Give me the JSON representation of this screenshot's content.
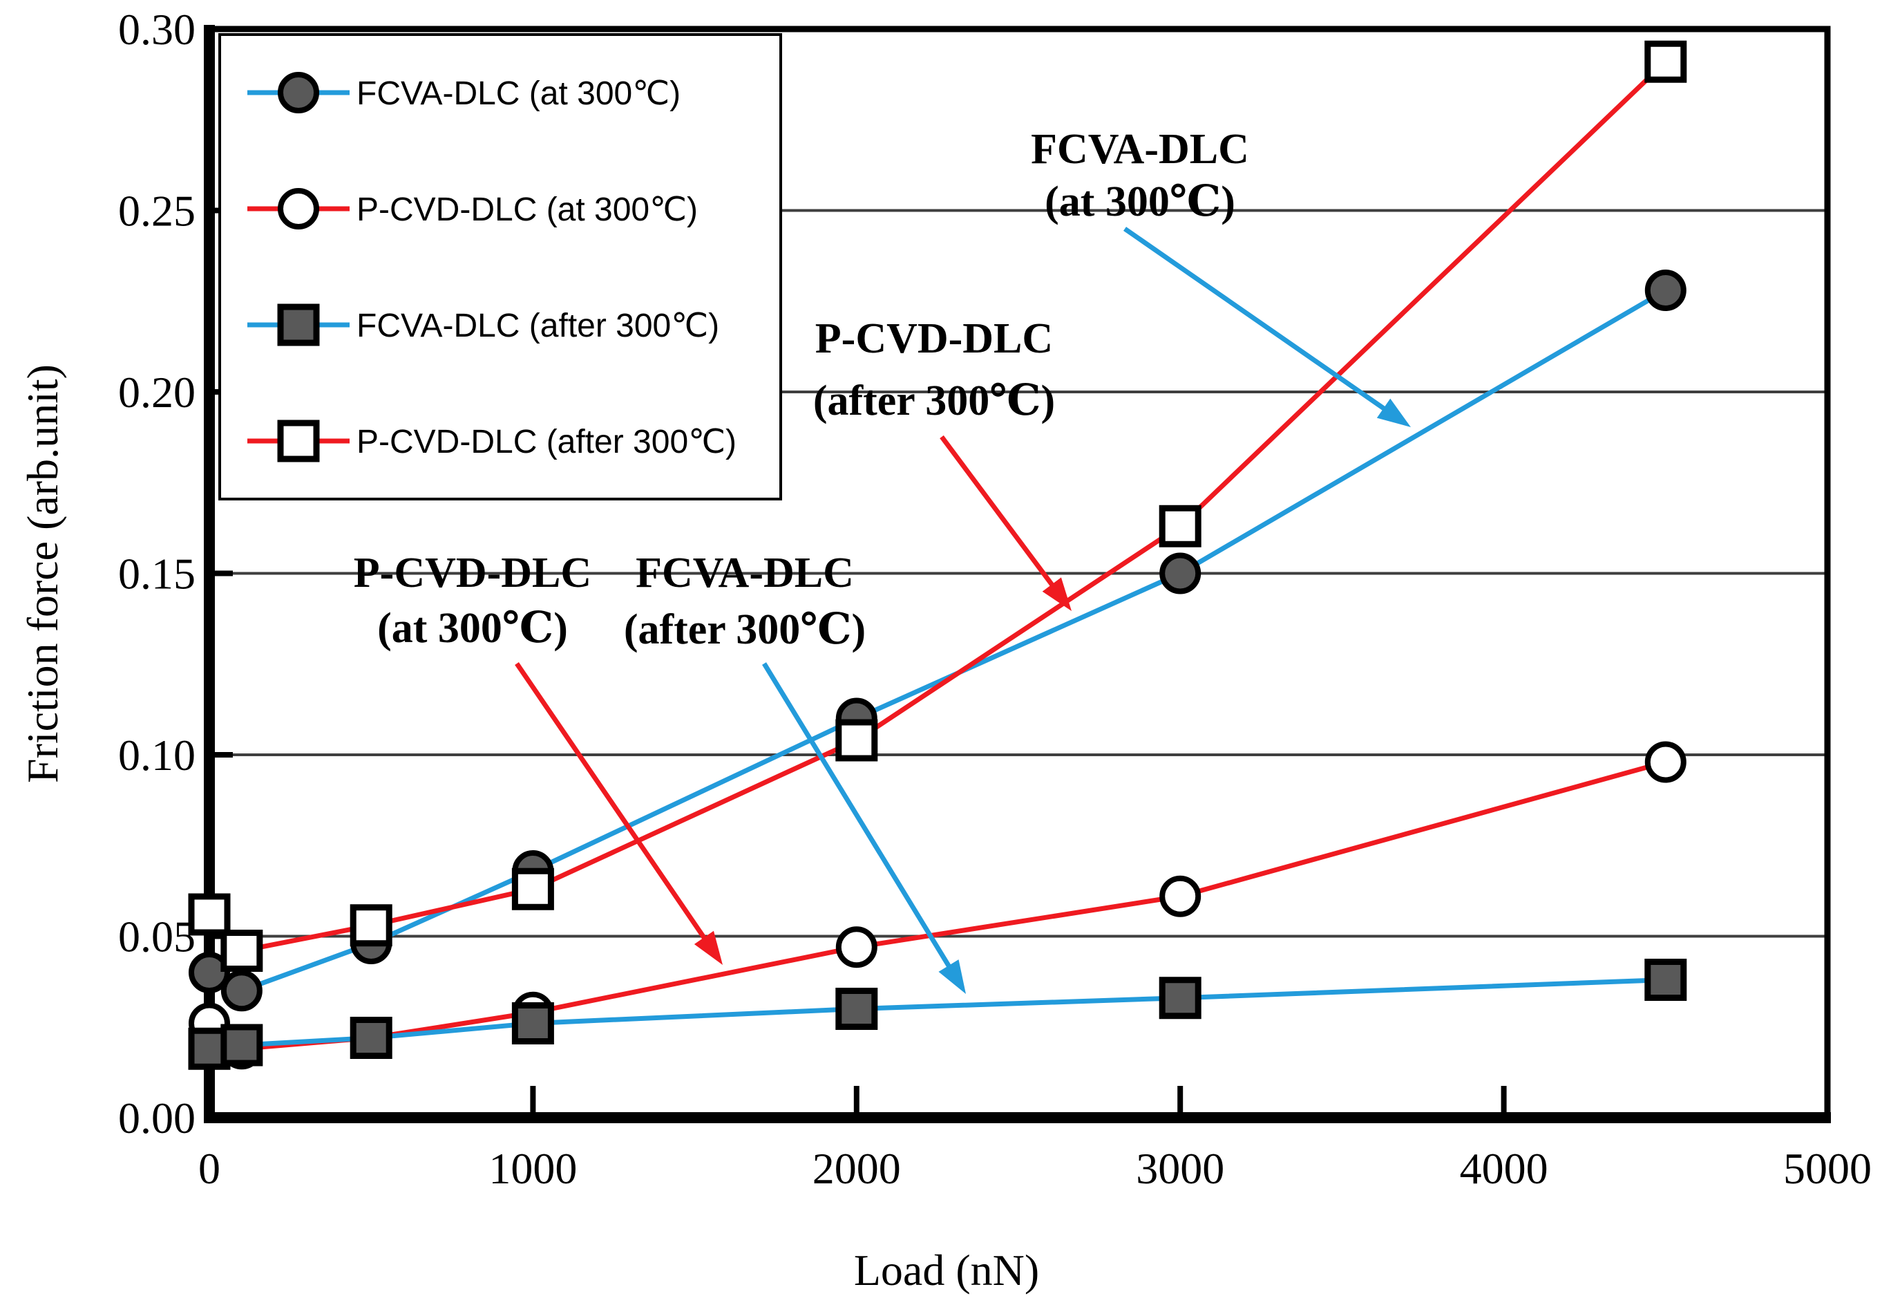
{
  "chart_data": {
    "type": "scatter",
    "title": "",
    "xlabel": "Load (nN)",
    "ylabel": "Friction force (arb.unit)",
    "xlim": [
      0,
      5000
    ],
    "ylim": [
      0.0,
      0.3
    ],
    "x_ticks": [
      0,
      1000,
      2000,
      3000,
      4000,
      5000
    ],
    "x_tick_labels": [
      "0",
      "1000",
      "2000",
      "3000",
      "4000",
      "5000"
    ],
    "y_ticks": [
      0.0,
      0.05,
      0.1,
      0.15,
      0.2,
      0.25,
      0.3
    ],
    "y_tick_labels": [
      "0.00",
      "0.05",
      "0.10",
      "0.15",
      "0.20",
      "0.25",
      "0.30"
    ],
    "grid": "horizontal",
    "legend_position": "top-left-inside",
    "colors": {
      "blue_line": "#239bdb",
      "red_line": "#ef1a20",
      "marker_fill_gray": "#595959",
      "marker_fill_open": "#ffffff",
      "marker_border": "#000000",
      "gridline": "#3f3f3f",
      "frame": "#000000"
    },
    "series": [
      {
        "name": "FCVA-DLC (at 300℃)",
        "line_color": "#239bdb",
        "marker": "filled-circle",
        "points": [
          [
            0,
            0.04
          ],
          [
            100,
            0.035
          ],
          [
            500,
            0.048
          ],
          [
            1000,
            0.068
          ],
          [
            2000,
            0.11
          ],
          [
            3000,
            0.15
          ],
          [
            4500,
            0.228
          ]
        ]
      },
      {
        "name": "P-CVD-DLC (at 300℃)",
        "line_color": "#ef1a20",
        "marker": "open-circle",
        "points": [
          [
            0,
            0.026
          ],
          [
            100,
            0.019
          ],
          [
            500,
            0.022
          ],
          [
            1000,
            0.029
          ],
          [
            2000,
            0.047
          ],
          [
            3000,
            0.061
          ],
          [
            4500,
            0.098
          ]
        ]
      },
      {
        "name": "FCVA-DLC (after 300℃)",
        "line_color": "#239bdb",
        "marker": "filled-square",
        "points": [
          [
            0,
            0.019
          ],
          [
            100,
            0.02
          ],
          [
            500,
            0.022
          ],
          [
            1000,
            0.026
          ],
          [
            2000,
            0.03
          ],
          [
            3000,
            0.033
          ],
          [
            4500,
            0.038
          ]
        ]
      },
      {
        "name": "P-CVD-DLC (after 300℃)",
        "line_color": "#ef1a20",
        "marker": "open-square",
        "points": [
          [
            0,
            0.056
          ],
          [
            100,
            0.046
          ],
          [
            500,
            0.053
          ],
          [
            1000,
            0.063
          ],
          [
            2000,
            0.104
          ],
          [
            3000,
            0.163
          ],
          [
            4500,
            0.291
          ]
        ]
      }
    ],
    "annotations": [
      {
        "line1": "FCVA-DLC",
        "line2": "(at 300℃)",
        "color": "#239bdb"
      },
      {
        "line1": "P-CVD-DLC",
        "line2": "(after 300℃)",
        "color": "#ef1a20"
      },
      {
        "line1": "P-CVD-DLC",
        "line2": "(at 300℃)",
        "color": "#ef1a20"
      },
      {
        "line1": "FCVA-DLC",
        "line2": "(after 300℃)",
        "color": "#239bdb"
      }
    ]
  }
}
